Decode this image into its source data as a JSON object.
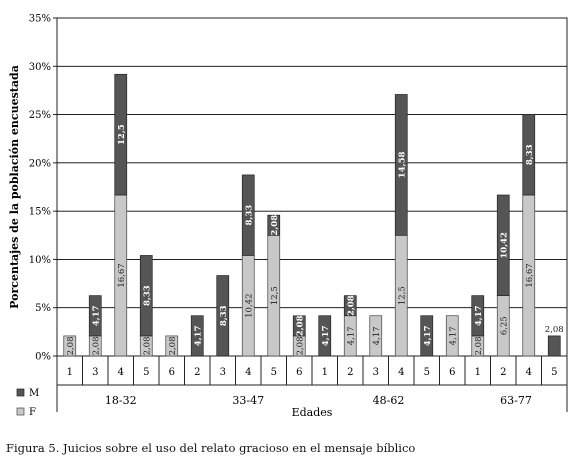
{
  "caption": "Figura 5. Juicios sobre el uso del relato gracioso en el mensaje bíblico",
  "chart_data": {
    "type": "bar",
    "stacked": true,
    "title": "",
    "xlabel": "Edades",
    "ylabel": "Porcentajes de la población encuestada",
    "ylim": [
      0,
      35
    ],
    "y_ticks": [
      "0%",
      "5%",
      "10%",
      "15%",
      "20%",
      "25%",
      "30%",
      "35%"
    ],
    "grid": true,
    "legend_position": "bottom-left",
    "groups": [
      {
        "label": "18-32",
        "categories": [
          "1",
          "3",
          "4",
          "5",
          "6"
        ]
      },
      {
        "label": "33-47",
        "categories": [
          "2",
          "3",
          "4",
          "5",
          "6"
        ]
      },
      {
        "label": "48-62",
        "categories": [
          "1",
          "2",
          "3",
          "4",
          "5",
          "6"
        ]
      },
      {
        "label": "63-77",
        "categories": [
          "1",
          "2",
          "4",
          "5"
        ]
      }
    ],
    "series": [
      {
        "name": "F",
        "color": "#c8c8c8",
        "values": [
          2.08,
          2.08,
          16.67,
          2.08,
          2.08,
          0,
          0,
          10.42,
          12.5,
          2.08,
          0,
          4.17,
          4.17,
          12.5,
          0,
          4.17,
          2.08,
          6.25,
          16.67,
          0
        ],
        "labels": [
          "2,08",
          "2,08",
          "16,67",
          "2,08",
          "2,08",
          "",
          "",
          "10,42",
          "12,5",
          "2,08",
          "",
          "4,17",
          "4,17",
          "12,5",
          "",
          "4,17",
          "2,08",
          "6,25",
          "16,67",
          ""
        ]
      },
      {
        "name": "M",
        "color": "#555555",
        "values": [
          0,
          4.17,
          12.5,
          8.33,
          0,
          4.17,
          8.33,
          8.33,
          2.08,
          2.08,
          4.17,
          2.08,
          0,
          14.58,
          4.17,
          0,
          4.17,
          10.42,
          8.33,
          2.08
        ],
        "labels": [
          "",
          "4,17",
          "12,5",
          "8,33",
          "",
          "4,17",
          "8,33",
          "8,33",
          "2,08",
          "2,08",
          "4,17",
          "2,08",
          "",
          "14,58",
          "4,17",
          "",
          "4,17",
          "10,42",
          "8,33",
          "2,08"
        ]
      }
    ]
  }
}
